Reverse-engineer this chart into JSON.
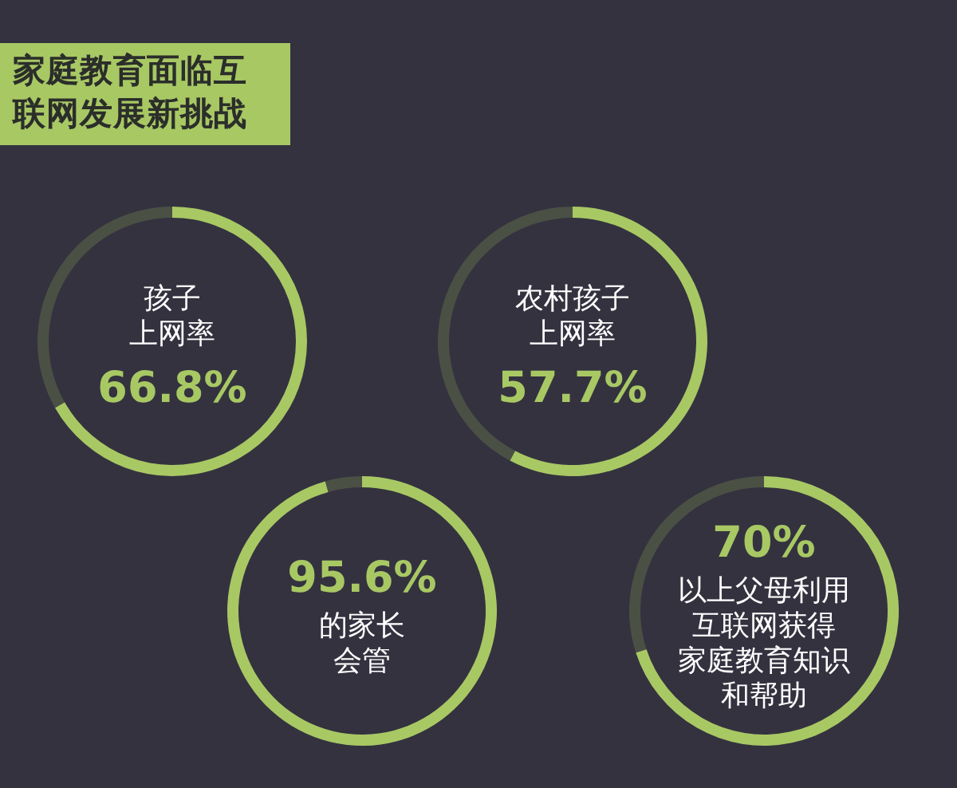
{
  "chart_data": [
    {
      "type": "other",
      "title": "家庭教育面临互联网发展新挑战"
    },
    {
      "type": "donut",
      "categories": [
        null,
        null
      ],
      "values": [
        66.8,
        33.2
      ],
      "colors": [
        "#a8c864",
        "#4b5045"
      ],
      "value_labels": [
        "66.8%",
        null
      ],
      "annotations": [
        "孩子",
        "上网率"
      ]
    },
    {
      "type": "donut",
      "categories": [
        null,
        null
      ],
      "values": [
        57.7,
        42.3
      ],
      "colors": [
        "#a8c864",
        "#4b5045"
      ],
      "value_labels": [
        "57.7%",
        null
      ],
      "annotations": [
        "农村孩子",
        "上网率"
      ]
    },
    {
      "type": "donut",
      "categories": [
        null,
        null
      ],
      "values": [
        95.6,
        4.4
      ],
      "colors": [
        "#a8c864",
        "#4b5045"
      ],
      "value_labels": [
        "95.6%",
        null
      ],
      "annotations": [
        "的家长",
        "会管"
      ]
    },
    {
      "type": "donut",
      "categories": [
        null,
        null
      ],
      "values": [
        70,
        30
      ],
      "colors": [
        "#a8c864",
        "#4b5045"
      ],
      "value_labels": [
        "70%",
        null
      ],
      "annotations": [
        "以上父母利用",
        "互联网获得",
        "家庭教育知识",
        "和帮助"
      ]
    }
  ]
}
